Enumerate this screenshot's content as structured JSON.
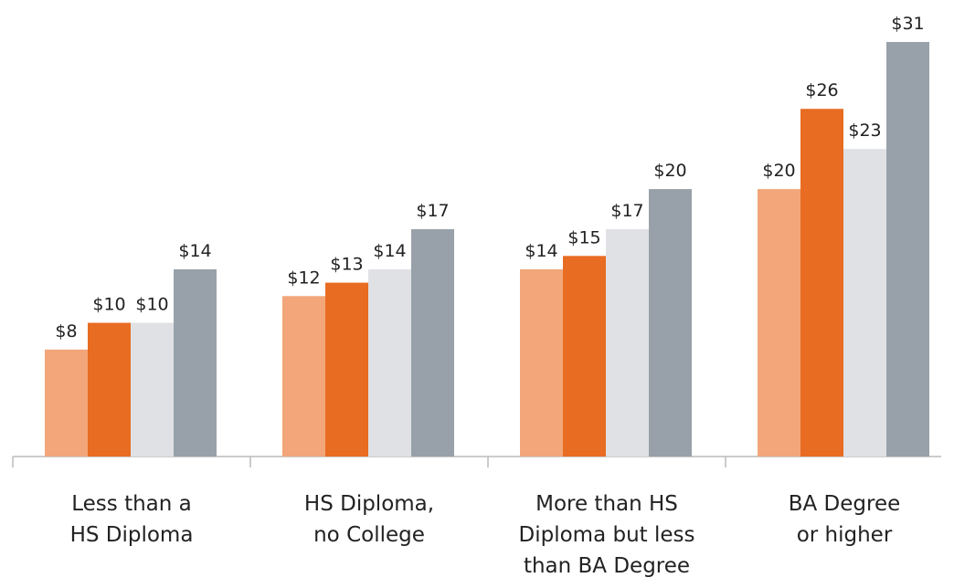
{
  "chart_data": {
    "type": "bar",
    "categories": [
      "Less than a\nHS Diploma",
      "HS Diploma,\nno College",
      "More than HS\nDiploma but less\nthan BA Degree",
      "BA Degree\nor higher"
    ],
    "series": [
      {
        "color": "#f2a679",
        "values": [
          8,
          12,
          14,
          20
        ],
        "value_labels": [
          "$8",
          "$12",
          "$14",
          "$20"
        ]
      },
      {
        "color": "#e86c22",
        "values": [
          10,
          13,
          15,
          26
        ],
        "value_labels": [
          "$10",
          "$13",
          "$15",
          "$26"
        ]
      },
      {
        "color": "#dfe1e4",
        "values": [
          10,
          14,
          17,
          23
        ],
        "value_labels": [
          "$10",
          "$14",
          "$17",
          "$23"
        ]
      },
      {
        "color": "#98a1a9",
        "values": [
          14,
          17,
          20,
          31
        ],
        "value_labels": [
          "$14",
          "$17",
          "$20",
          "$31"
        ]
      }
    ]
  }
}
